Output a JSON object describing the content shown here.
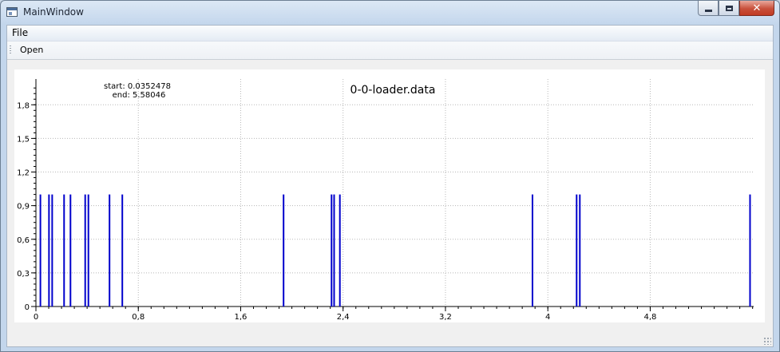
{
  "window": {
    "title": "MainWindow"
  },
  "menubar": {
    "items": [
      {
        "label": "File"
      }
    ]
  },
  "toolbar": {
    "open_label": "Open"
  },
  "colors": {
    "series": "#0000cc",
    "grid": "#b8b8b8",
    "axis": "#000000"
  },
  "plot": {
    "title": "0-0-loader.data",
    "annotation_start": "start: 0.0352478",
    "annotation_end": "end: 5.58046"
  },
  "chart_data": {
    "type": "bar",
    "title": "0-0-loader.data",
    "xlabel": "",
    "ylabel": "",
    "xlim": [
      0,
      5.58
    ],
    "ylim": [
      0,
      2.0
    ],
    "grid": true,
    "x_ticks": [
      "0",
      "0,8",
      "1,6",
      "2,4",
      "3,2",
      "4",
      "4,8"
    ],
    "x_tick_values": [
      0,
      0.8,
      1.6,
      2.4,
      3.2,
      4.0,
      4.8
    ],
    "y_ticks": [
      "0",
      "0,3",
      "0,6",
      "0,9",
      "1,2",
      "1,5",
      "1,8"
    ],
    "y_tick_values": [
      0,
      0.3,
      0.6,
      0.9,
      1.2,
      1.5,
      1.8
    ],
    "series": [
      {
        "x": [
          0.035,
          0.102,
          0.127,
          0.22,
          0.27,
          0.385,
          0.41,
          0.575,
          0.675,
          1.935,
          2.31,
          2.33,
          2.375,
          3.88,
          4.225,
          4.25,
          5.58
        ],
        "values": [
          1,
          1,
          1,
          1,
          1,
          1,
          1,
          1,
          1,
          1,
          1,
          1,
          1,
          1,
          1,
          1,
          1
        ]
      }
    ]
  }
}
